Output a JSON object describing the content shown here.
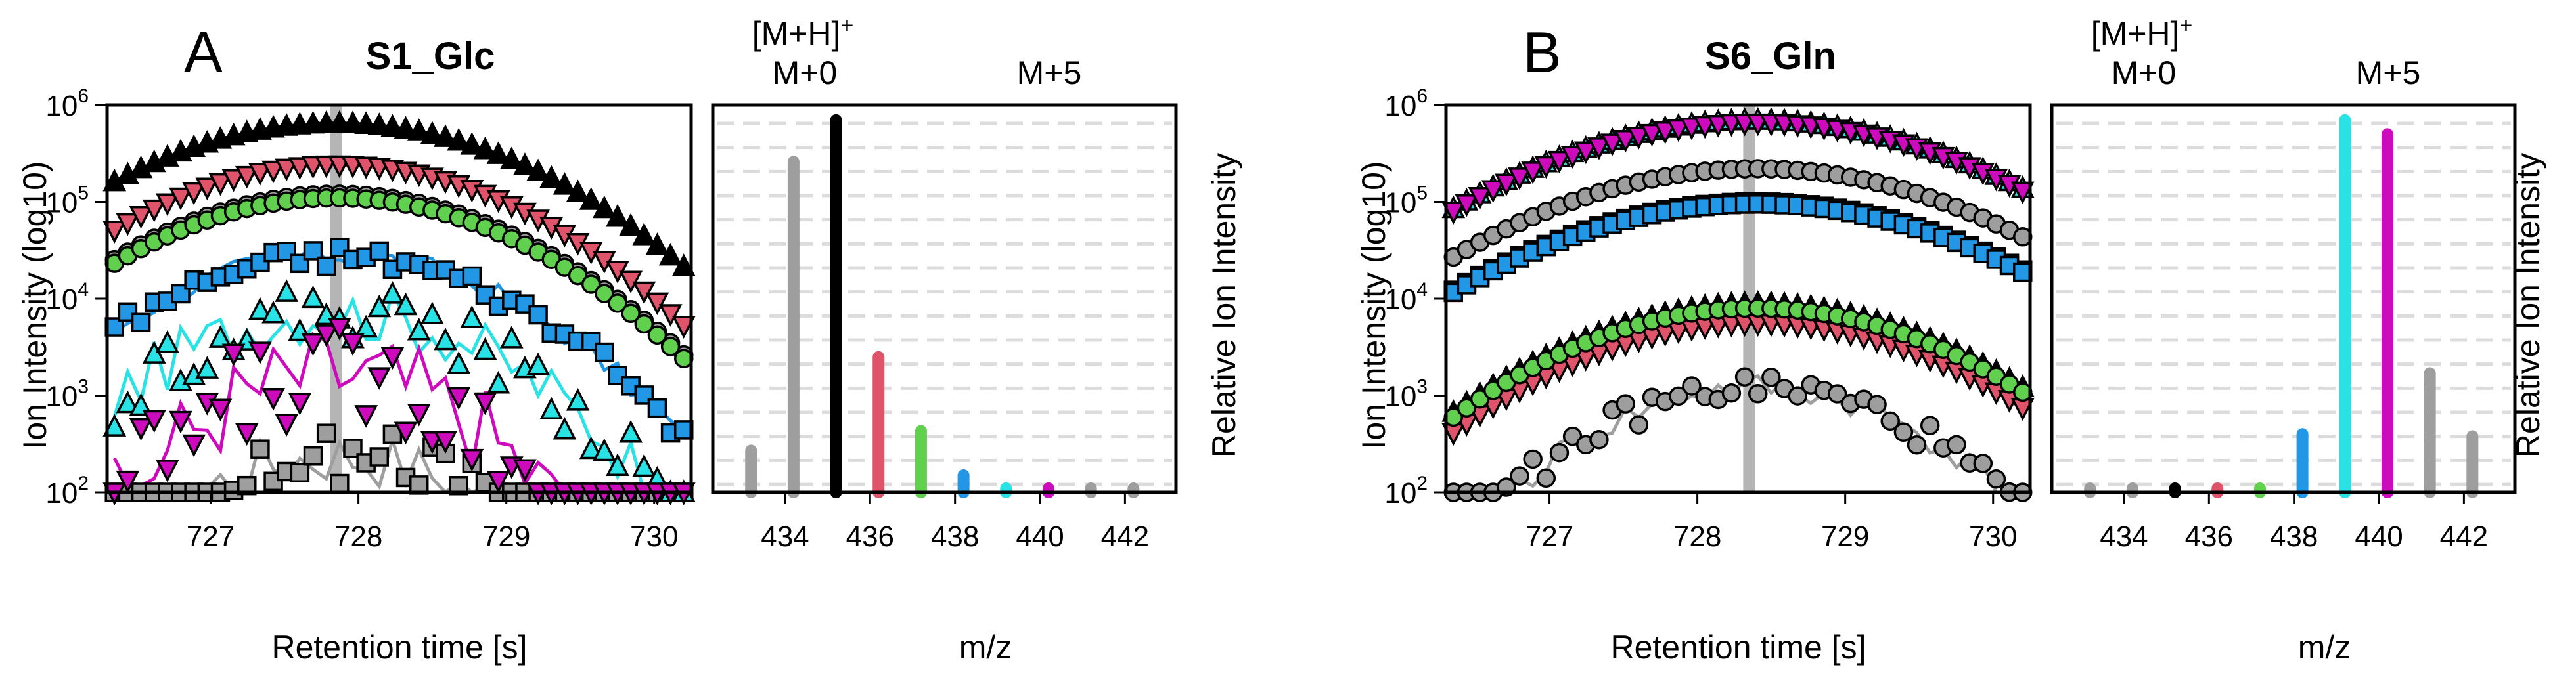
{
  "panels": [
    {
      "letter": "A",
      "title": "S1_Glc",
      "highlight_rt": 727.85
    },
    {
      "letter": "B",
      "title": "S6_Gln",
      "highlight_rt": 728.35
    }
  ],
  "iso_header": {
    "adduct": "[M+H]",
    "superscript": "+",
    "m0": "M+0",
    "m5": "M+5"
  },
  "labels": {
    "rt_xlabel": "Retention time [s]",
    "rt_ylabel": "Ion Intensity (log10)",
    "mz_xlabel": "m/z",
    "mz_ylabel": "Relative Ion Intensity"
  },
  "isotopologue_colors": [
    "#9e9e9e",
    "#000000",
    "#df536b",
    "#61d04f",
    "#2297e6",
    "#28e2e5",
    "#cd0bbc",
    "#9e9e9e",
    "#9e9e9e"
  ],
  "chart_data": [
    {
      "type": "scatter",
      "panel": "A",
      "title": "S1_Glc",
      "xlabel": "Retention time [s]",
      "ylabel": "Ion Intensity (log10)",
      "xlim": [
        726.3,
        730.25
      ],
      "ylog": true,
      "ylim": [
        100,
        1000000
      ],
      "xticks": [
        727,
        728,
        729,
        730
      ],
      "yticks": [
        {
          "base": "10",
          "exp": "2"
        },
        {
          "base": "10",
          "exp": "3"
        },
        {
          "base": "10",
          "exp": "4"
        },
        {
          "base": "10",
          "exp": "5"
        },
        {
          "base": "10",
          "exp": "6"
        }
      ],
      "x_range": [
        726.35,
        730.2
      ],
      "series": [
        {
          "mz": 433.2,
          "marker": "square",
          "color": "#9e9e9e",
          "peak": 240,
          "apex": 727.85,
          "width": 0.7,
          "floor": 100,
          "jitter": 0.3
        },
        {
          "mz": 434.2,
          "marker": "circle",
          "color": "#9e9e9e",
          "peak": 120000,
          "apex": 727.85,
          "width": 0.85,
          "floor": 100,
          "jitter": 0
        },
        {
          "mz": 435.2,
          "marker": "triangle-up",
          "color": "#000000",
          "peak": 650000,
          "apex": 727.85,
          "width": 0.9,
          "floor": 100,
          "jitter": 0
        },
        {
          "mz": 436.2,
          "marker": "triangle-down",
          "color": "#df536b",
          "peak": 240000,
          "apex": 727.85,
          "width": 0.85,
          "floor": 100,
          "jitter": 0
        },
        {
          "mz": 437.2,
          "marker": "circle",
          "color": "#61d04f",
          "peak": 110000,
          "apex": 727.85,
          "width": 0.85,
          "floor": 100,
          "jitter": 0
        },
        {
          "mz": 438.2,
          "marker": "square",
          "color": "#2297e6",
          "peak": 28000,
          "apex": 727.85,
          "width": 0.8,
          "floor": 100,
          "jitter": 0.12
        },
        {
          "mz": 439.2,
          "marker": "triangle-up",
          "color": "#28e2e5",
          "peak": 7000,
          "apex": 727.85,
          "width": 0.75,
          "floor": 100,
          "jitter": 0.3
        },
        {
          "mz": 440.2,
          "marker": "triangle-down",
          "color": "#cd0bbc",
          "peak": 1700,
          "apex": 727.85,
          "width": 0.6,
          "floor": 100,
          "jitter": 0.5
        }
      ]
    },
    {
      "type": "bar",
      "panel": "A",
      "xlabel": "m/z",
      "ylabel": "Relative Ion Intensity",
      "xlim": [
        432.3,
        443.2
      ],
      "ylog": true,
      "ylim": [
        100,
        1000000
      ],
      "xticks": [
        434,
        436,
        438,
        440,
        442
      ],
      "x": [
        433.2,
        434.2,
        435.2,
        436.2,
        437.2,
        438.2,
        439.2,
        440.2,
        441.2,
        442.2
      ],
      "values": [
        270,
        260000,
        700000,
        2500,
        430,
        150,
        110,
        105,
        100,
        100
      ],
      "colors": [
        "#9e9e9e",
        "#9e9e9e",
        "#000000",
        "#df536b",
        "#61d04f",
        "#2297e6",
        "#28e2e5",
        "#cd0bbc",
        "#9e9e9e",
        "#9e9e9e"
      ]
    },
    {
      "type": "scatter",
      "panel": "B",
      "title": "S6_Gln",
      "xlabel": "Retention time [s]",
      "ylabel": "Ion Intensity (log10)",
      "xlim": [
        726.3,
        730.25
      ],
      "ylog": true,
      "ylim": [
        100,
        1000000
      ],
      "xticks": [
        727,
        728,
        729,
        730
      ],
      "yticks": [
        {
          "base": "10",
          "exp": "2"
        },
        {
          "base": "10",
          "exp": "3"
        },
        {
          "base": "10",
          "exp": "4"
        },
        {
          "base": "10",
          "exp": "5"
        },
        {
          "base": "10",
          "exp": "6"
        }
      ],
      "x_range": [
        726.35,
        730.2
      ],
      "series": [
        {
          "mz": 433.2,
          "marker": "circle",
          "color": "#9e9e9e",
          "peak": 1200,
          "apex": 728.4,
          "width": 0.75,
          "floor": 100,
          "jitter": 0.15
        },
        {
          "mz": 434.2,
          "marker": "square",
          "color": "#9e9e9e",
          "peak": 100000,
          "apex": 728.4,
          "width": 1.0,
          "floor": 100,
          "jitter": 0
        },
        {
          "mz": 435.2,
          "marker": "triangle-up",
          "color": "#000000",
          "peak": 9000,
          "apex": 728.4,
          "width": 0.9,
          "floor": 100,
          "jitter": 0
        },
        {
          "mz": 436.2,
          "marker": "triangle-down",
          "color": "#df536b",
          "peak": 5500,
          "apex": 728.4,
          "width": 0.9,
          "floor": 100,
          "jitter": 0
        },
        {
          "mz": 437.2,
          "marker": "circle",
          "color": "#61d04f",
          "peak": 8000,
          "apex": 728.4,
          "width": 0.9,
          "floor": 100,
          "jitter": 0
        },
        {
          "mz": 438.2,
          "marker": "square",
          "color": "#2297e6",
          "peak": 95000,
          "apex": 728.4,
          "width": 1.0,
          "floor": 100,
          "jitter": 0
        },
        {
          "mz": 439.2,
          "marker": "triangle-up",
          "color": "#28e2e5",
          "peak": 700000,
          "apex": 728.4,
          "width": 1.0,
          "floor": 100,
          "jitter": 0
        },
        {
          "mz": 440.2,
          "marker": "triangle-down",
          "color": "#cd0bbc",
          "peak": 650000,
          "apex": 728.4,
          "width": 1.0,
          "floor": 100,
          "jitter": 0
        },
        {
          "mz": 441.2,
          "marker": "circle",
          "color": "#9e9e9e",
          "peak": 220000,
          "apex": 728.4,
          "width": 1.0,
          "floor": 100,
          "jitter": 0
        }
      ]
    },
    {
      "type": "bar",
      "panel": "B",
      "xlabel": "m/z",
      "ylabel": "Relative Ion Intensity",
      "xlim": [
        432.3,
        443.2
      ],
      "ylog": true,
      "ylim": [
        100,
        1000000
      ],
      "xticks": [
        434,
        436,
        438,
        440,
        442
      ],
      "x": [
        433.2,
        434.2,
        435.2,
        436.2,
        437.2,
        438.2,
        439.2,
        440.2,
        441.2,
        442.2
      ],
      "values": [
        100,
        100,
        100,
        100,
        100,
        400,
        700000,
        500000,
        1700,
        380
      ],
      "colors": [
        "#9e9e9e",
        "#9e9e9e",
        "#000000",
        "#df536b",
        "#61d04f",
        "#2297e6",
        "#28e2e5",
        "#cd0bbc",
        "#9e9e9e",
        "#9e9e9e"
      ]
    }
  ]
}
